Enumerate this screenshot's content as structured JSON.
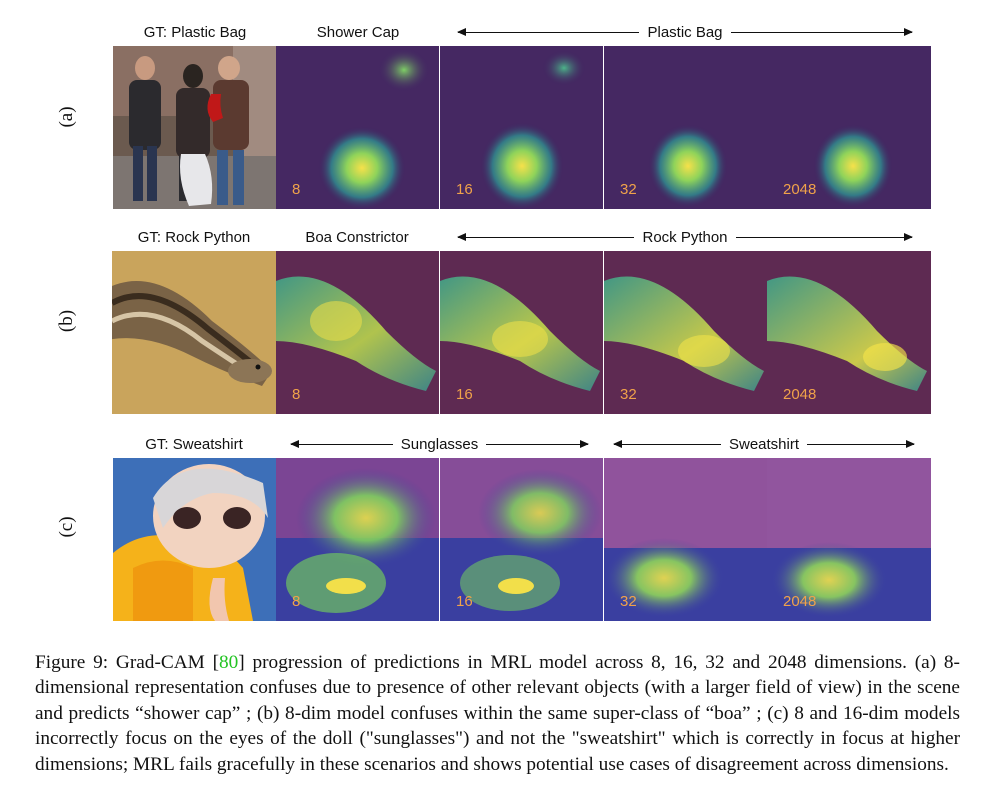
{
  "rows": [
    {
      "label": "(a)",
      "gt_label": "GT: Plastic Bag",
      "first_pred": "Shower Cap",
      "span_pred": "Plastic Bag",
      "tiles": [
        "8",
        "16",
        "32",
        "2048"
      ]
    },
    {
      "label": "(b)",
      "gt_label": "GT: Rock Python",
      "first_pred": "Boa Constrictor",
      "span_pred": "Rock Python",
      "tiles": [
        "8",
        "16",
        "32",
        "2048"
      ]
    },
    {
      "label": "(c)",
      "gt_label": "GT: Sweatshirt",
      "pred_left": "Sunglasses",
      "pred_right": "Sweatshirt",
      "tiles": [
        "8",
        "16",
        "32",
        "2048"
      ]
    }
  ],
  "caption": {
    "figure": "Figure 9:",
    "text_before_ref": " Grad-CAM [",
    "ref": "80",
    "text_after_ref": "] progression of predictions in MRL model across 8, 16, 32 and 2048 dimensions. (a) 8-dimensional representation confuses due to presence of other relevant objects (with a larger field of view) in the scene and predicts “shower cap” ; (b) 8-dim model confuses within the same super-class of “boa” ; (c) 8 and 16-dim models incorrectly focus on the eyes of the doll (\"sunglasses\") and not the \"sweatshirt\" which is correctly in focus at higher dimensions; MRL fails gracefully in these scenarios and shows potential use cases of disagreement across dimensions."
  },
  "colors": {
    "heatmap_bg_a": "#3b1f5e",
    "heatmap_bg_b": "#5e2a52",
    "heatmap_bg_c": "#3a3fa0",
    "tile_number": "#f0a24a",
    "citation": "#22c322"
  }
}
